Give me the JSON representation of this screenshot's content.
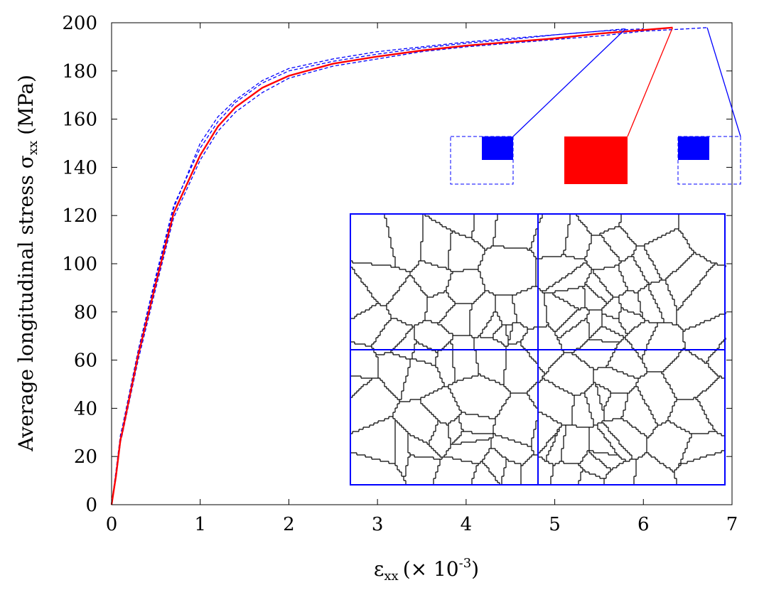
{
  "chart_data": {
    "type": "line",
    "title": "",
    "xlabel_main": "ε",
    "xlabel_sub": "xx",
    "xlabel_rest": "(× 10",
    "xlabel_sup": "-3",
    "xlabel_close": ")",
    "ylabel_main": "Average longitudinal stress σ",
    "ylabel_sub": "xx",
    "ylabel_unit": "(MPa)",
    "xlim": [
      0,
      7
    ],
    "ylim": [
      0,
      200
    ],
    "x_ticks": [
      0,
      1,
      2,
      3,
      4,
      5,
      6,
      7
    ],
    "y_ticks": [
      0,
      20,
      40,
      60,
      80,
      100,
      120,
      140,
      160,
      180,
      200
    ],
    "grid": false,
    "series": [
      {
        "color": "#ff0000",
        "style": "solid",
        "x": [
          0,
          0.05,
          0.1,
          0.12,
          0.3,
          0.5,
          0.7,
          1.0,
          1.2,
          1.4,
          1.7,
          2.0,
          2.5,
          3.0,
          3.5,
          4.0,
          4.5,
          5.0,
          5.5,
          6.0,
          6.33
        ],
        "y": [
          0,
          12,
          27,
          30,
          62,
          92,
          121,
          145,
          157,
          165,
          173,
          178,
          183,
          186,
          188.5,
          190.5,
          192,
          193.5,
          195.5,
          197,
          198
        ]
      },
      {
        "color": "#0000ff",
        "style": "dashed",
        "x": [
          0,
          0.05,
          0.1,
          0.12,
          0.3,
          0.5,
          0.7,
          1.0,
          1.2,
          1.4,
          1.7,
          2.0,
          2.5,
          3.0,
          3.5,
          4.0,
          4.5,
          5.0,
          5.5,
          5.8
        ],
        "y": [
          0,
          14,
          29,
          32,
          64,
          95,
          124,
          148,
          159,
          167,
          175,
          180,
          184,
          187,
          189.5,
          191.5,
          193,
          195,
          196.5,
          197.5
        ]
      },
      {
        "color": "#0000ff",
        "style": "dashed",
        "x": [
          0,
          0.05,
          0.1,
          0.12,
          0.3,
          0.5,
          0.7,
          1.0,
          1.2,
          1.4,
          1.7,
          2.0,
          2.5,
          3.0,
          3.5,
          4.0,
          4.5,
          5.0,
          5.5,
          6.0,
          6.5,
          6.72
        ],
        "y": [
          0,
          11,
          26,
          29,
          60,
          90,
          119,
          143,
          155,
          163,
          171,
          177,
          182,
          185,
          188,
          190,
          191.5,
          193,
          194.5,
          196.5,
          197.5,
          198
        ]
      },
      {
        "color": "#0000ff",
        "style": "dashed",
        "x": [
          0,
          0.05,
          0.1,
          0.12,
          0.3,
          0.5,
          0.7,
          1.0,
          1.2,
          1.4,
          1.7,
          2.0,
          2.5,
          3.0,
          3.5,
          4.0,
          4.5,
          5.0,
          5.5,
          6.0
        ],
        "y": [
          0,
          13,
          28,
          31,
          63,
          94,
          123,
          150,
          161,
          168,
          176,
          181,
          185,
          188,
          190,
          192,
          193.5,
          195,
          196.5,
          197.5
        ]
      }
    ],
    "inset_legend_markers": [
      {
        "kind": "solid-blue-small",
        "x": 4.17,
        "y": 147,
        "endpoint_x": 5.8,
        "endpoint_y": 197.5
      },
      {
        "kind": "solid-red-large",
        "x": 5.25,
        "y": 142,
        "endpoint_x": 6.33,
        "endpoint_y": 198
      },
      {
        "kind": "solid-blue-small-right",
        "x": 6.33,
        "y": 147,
        "endpoint_x": 6.72,
        "endpoint_y": 198
      }
    ]
  },
  "colors": {
    "primary_series": "#ff0000",
    "secondary_series": "#0000ff",
    "inset_grid": "#0000ff",
    "grain_boundaries": "#000000"
  }
}
